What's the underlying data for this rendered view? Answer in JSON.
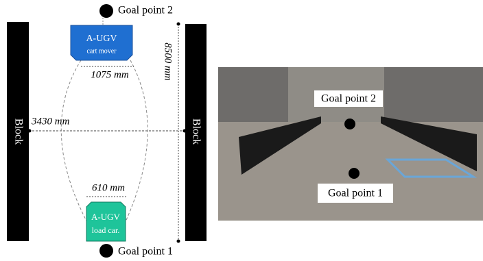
{
  "diagram": {
    "goal_top": "Goal point 2",
    "vehicle_top": {
      "name": "A-UGV",
      "subtitle": "cart mover",
      "width": "1075 mm"
    },
    "length": "8500 mm",
    "block_left": "Block",
    "block_right": "Block",
    "width": "3430 mm",
    "vehicle_bottom": {
      "name": "A-UGV",
      "subtitle": "load car.",
      "width": "610 mm"
    },
    "goal_bottom": "Goal point 1"
  },
  "photo": {
    "goal_top": "Goal point 2",
    "goal_bottom": "Goal point 1"
  }
}
